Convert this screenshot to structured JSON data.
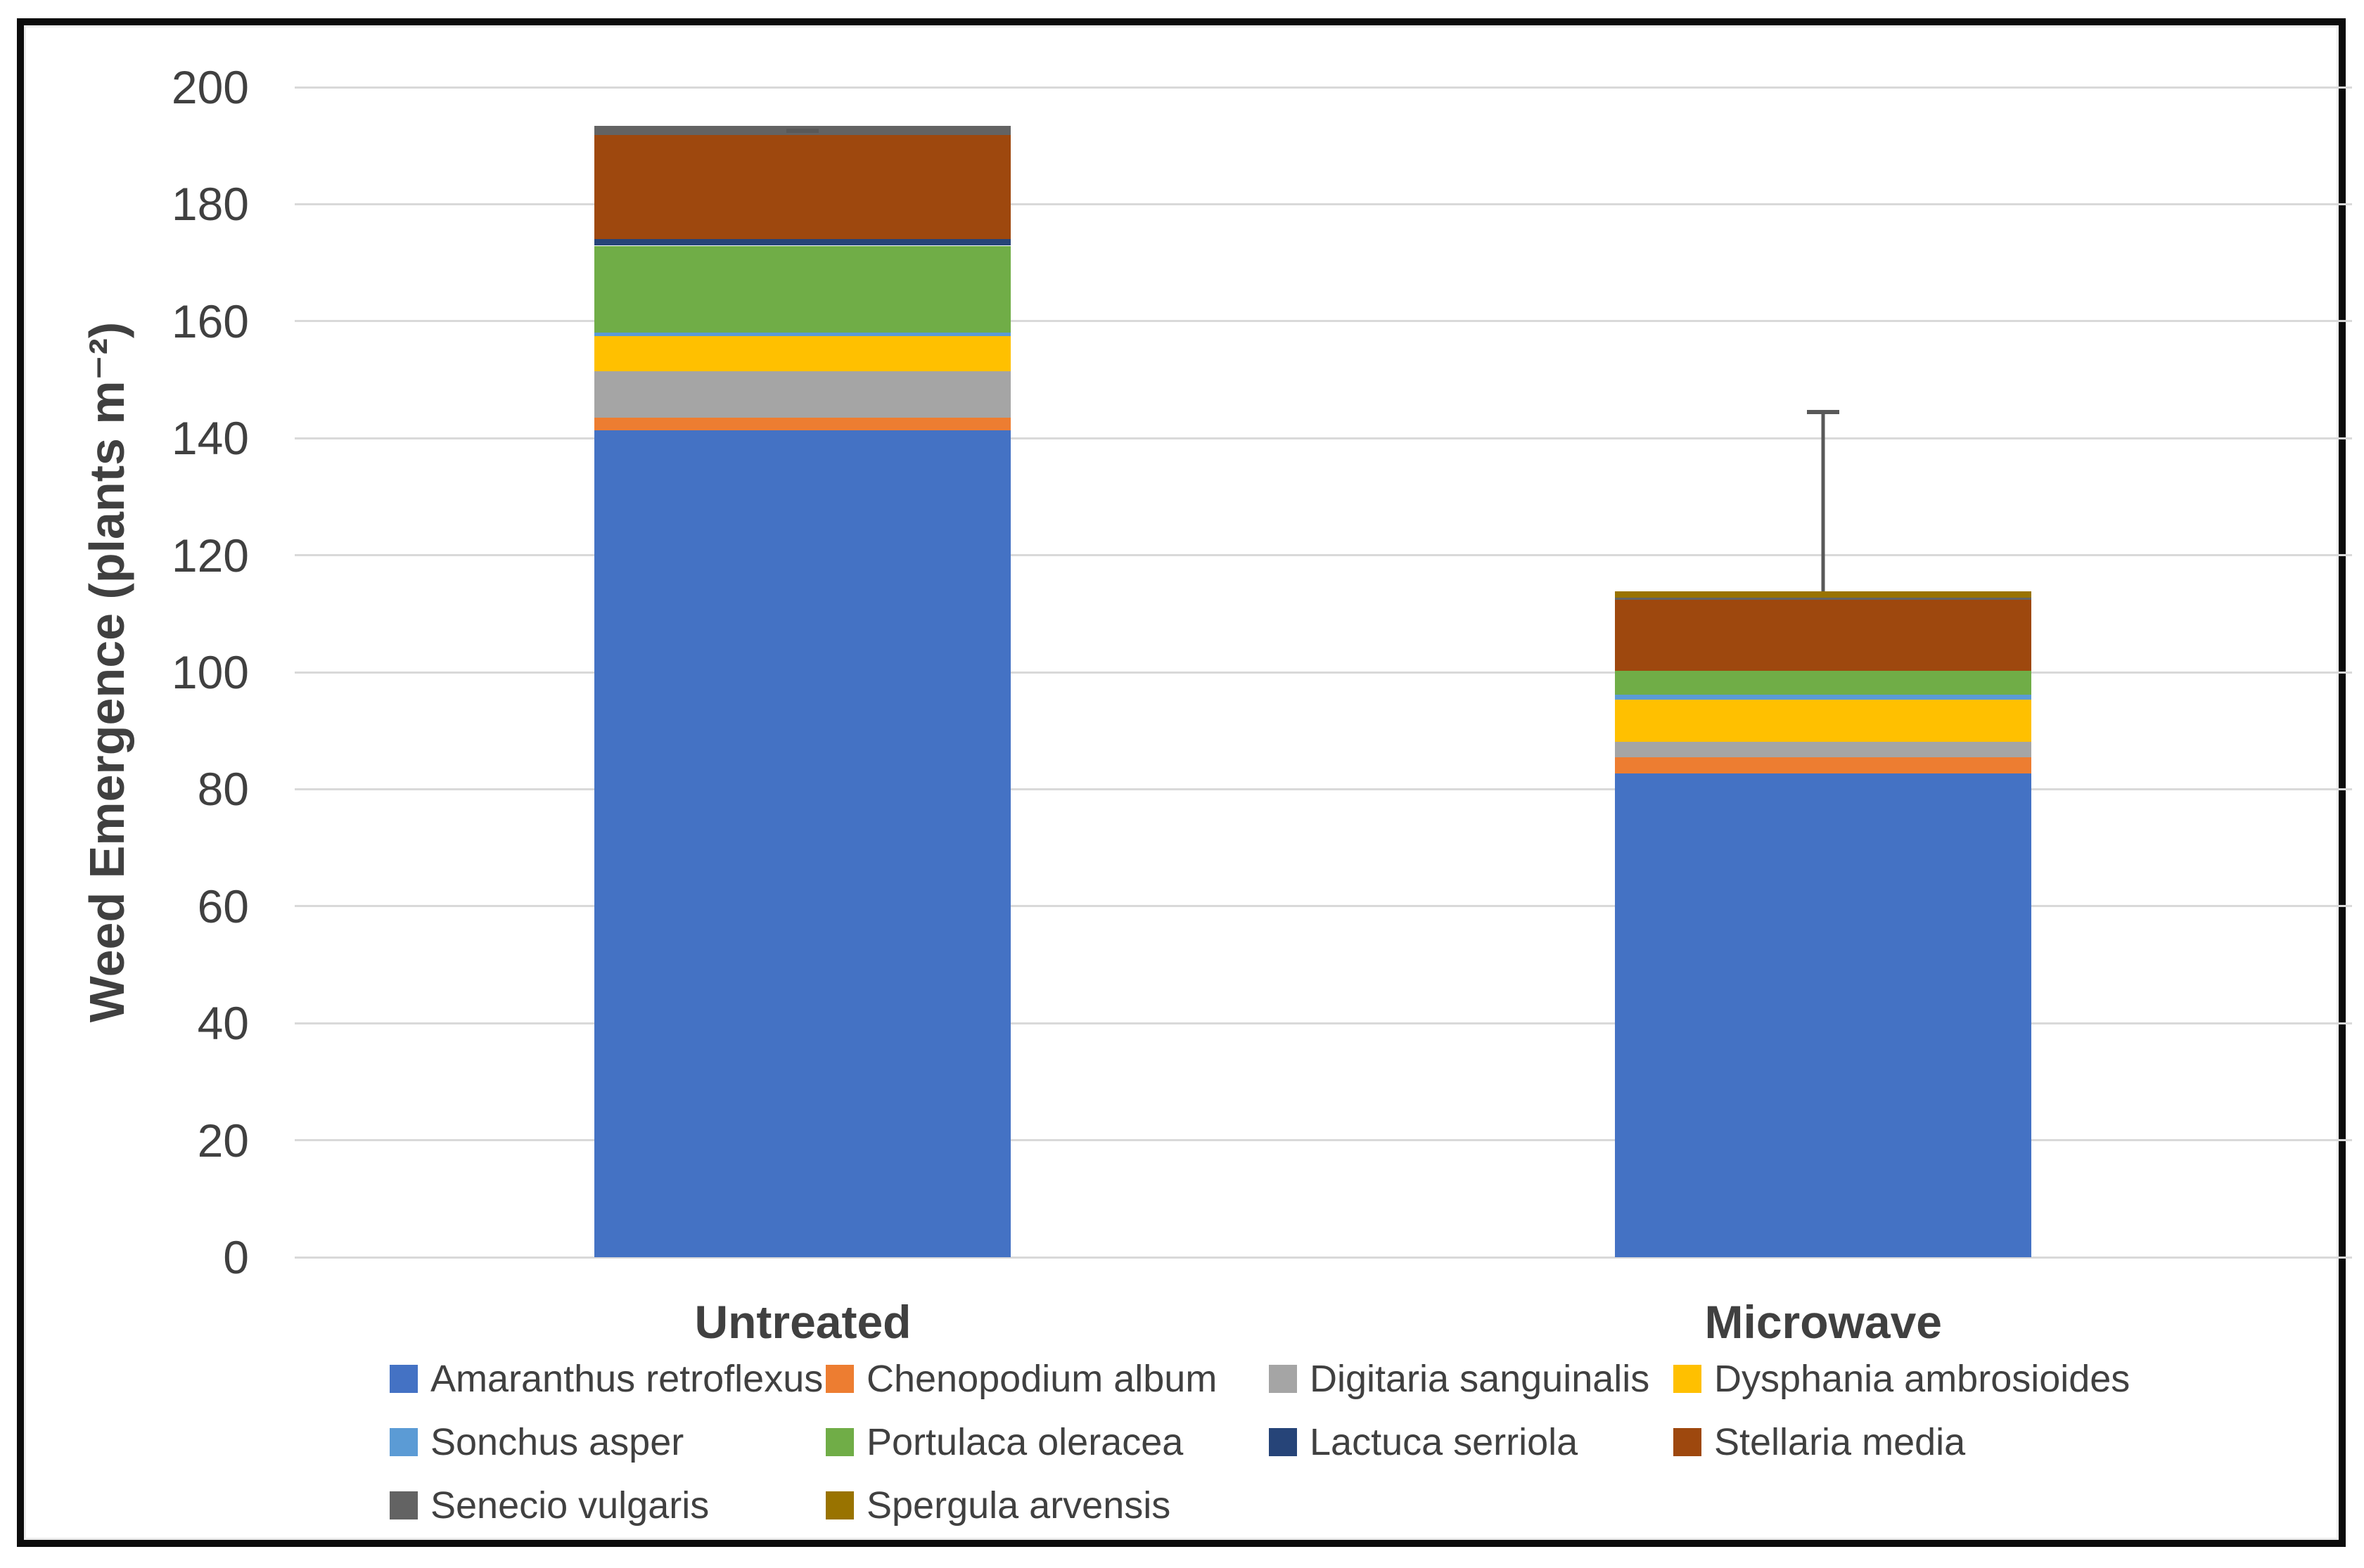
{
  "chart_data": {
    "type": "bar",
    "stacked": true,
    "title": "",
    "xlabel": "",
    "ylabel": "Weed Emergence (plants m⁻²)",
    "ylim": [
      0,
      200
    ],
    "yticks": [
      0,
      20,
      40,
      60,
      80,
      100,
      120,
      140,
      160,
      180,
      200
    ],
    "grid": true,
    "gridline_color": "#d9d9d9",
    "legend_position": "bottom",
    "categories": [
      "Untreated",
      "Microwave"
    ],
    "series": [
      {
        "name": "Amaranthus retroflexus",
        "color": "#4472C4",
        "values": [
          141.4,
          82.7
        ]
      },
      {
        "name": "Chenopodium album",
        "color": "#ED7D31",
        "values": [
          2.1,
          2.8
        ]
      },
      {
        "name": "Digitaria sanguinalis",
        "color": "#A5A5A5",
        "values": [
          8.0,
          2.6
        ]
      },
      {
        "name": "Dysphania ambrosioides",
        "color": "#FFC000",
        "values": [
          6.0,
          7.2
        ]
      },
      {
        "name": "Sonchus asper",
        "color": "#5B9BD5",
        "values": [
          0.5,
          0.8
        ]
      },
      {
        "name": "Portulaca oleracea",
        "color": "#70AD47",
        "values": [
          14.9,
          4.1
        ]
      },
      {
        "name": "Lactuca serriola",
        "color": "#264478",
        "values": [
          1.1,
          0
        ]
      },
      {
        "name": "Stellaria media",
        "color": "#9E480E",
        "values": [
          17.8,
          12.2
        ]
      },
      {
        "name": "Senecio vulgaris",
        "color": "#636363",
        "values": [
          1.6,
          0.4
        ]
      },
      {
        "name": "Spergula arvensis",
        "color": "#997300",
        "values": [
          0,
          1.0
        ]
      }
    ],
    "totals": [
      193.4,
      113.8
    ],
    "error_bars": {
      "top_values": [
        192.5,
        144.5
      ],
      "color": "#595959"
    },
    "legend_rows": [
      [
        0,
        1,
        2,
        3
      ],
      [
        4,
        5,
        6,
        7
      ],
      [
        8,
        9
      ]
    ]
  },
  "text_color": "#404040"
}
